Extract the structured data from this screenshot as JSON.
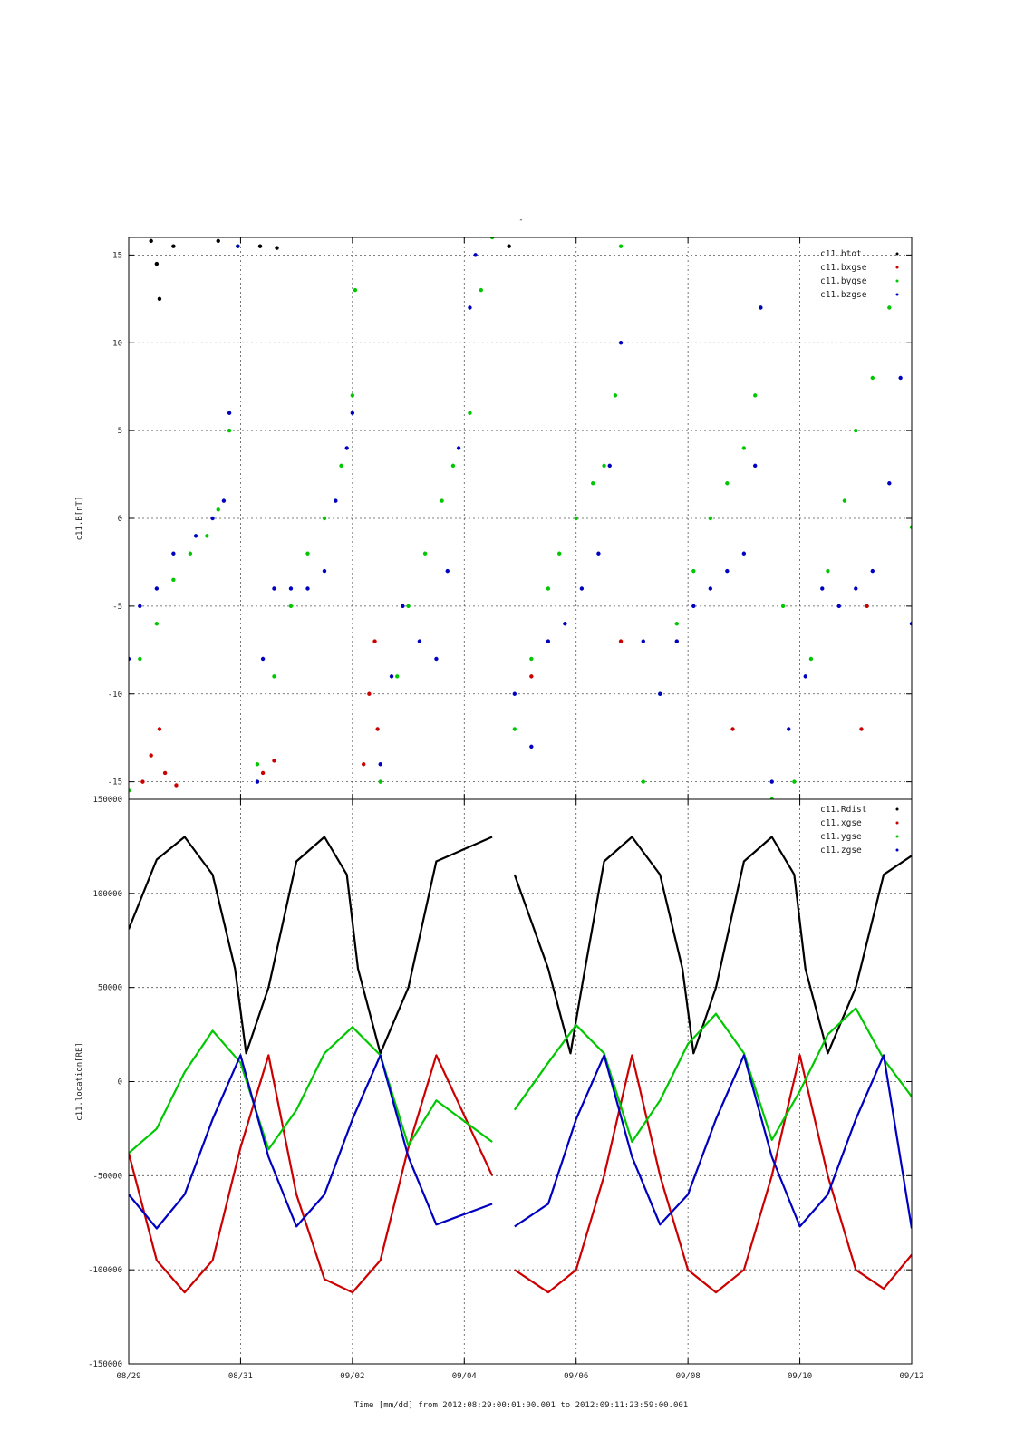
{
  "figure": {
    "top_title": "-",
    "time_label": "Time [mm/dd]  from 2012:08:29:00:01:00.001  to  2012:09:11:23:59:00.001"
  },
  "colors": {
    "black": "#000000",
    "red": "#cc0000",
    "green": "#00c800",
    "blue": "#0000c0"
  },
  "chart_data": [
    {
      "type": "scatter",
      "ylabel": "c11.B[nT]",
      "xlabel": "",
      "x_unit": "days since 08/29",
      "xlim": [
        0,
        14
      ],
      "ylim": [
        -16,
        16
      ],
      "yticks": [
        -15,
        -10,
        -5,
        0,
        5,
        10,
        15
      ],
      "xtick_labels": [
        "08/29",
        "08/31",
        "09/02",
        "09/04",
        "09/06",
        "09/08",
        "09/10",
        "09/12"
      ],
      "legend_position": "top-right",
      "grid": true,
      "series": [
        {
          "name": "c11.btot",
          "color": "black",
          "points": [
            [
              0.4,
              15.8
            ],
            [
              0.5,
              14.5
            ],
            [
              0.55,
              12.5
            ],
            [
              0.8,
              15.5
            ],
            [
              1.6,
              15.8
            ],
            [
              2.35,
              15.5
            ],
            [
              2.65,
              15.4
            ],
            [
              6.8,
              15.5
            ]
          ]
        },
        {
          "name": "c11.bxgse",
          "color": "red",
          "points": [
            [
              0.25,
              -15
            ],
            [
              0.4,
              -13.5
            ],
            [
              0.55,
              -12
            ],
            [
              0.65,
              -14.5
            ],
            [
              0.85,
              -15.2
            ],
            [
              2.4,
              -14.5
            ],
            [
              2.6,
              -13.8
            ],
            [
              4.3,
              -10
            ],
            [
              4.4,
              -7
            ],
            [
              4.45,
              -12
            ],
            [
              4.2,
              -14
            ],
            [
              7.2,
              -9
            ],
            [
              8.8,
              -7
            ],
            [
              10.8,
              -12
            ],
            [
              13.1,
              -12
            ],
            [
              13.2,
              -5
            ]
          ]
        },
        {
          "name": "c11.bygse",
          "color": "green",
          "points": [
            [
              0.0,
              -15.5
            ],
            [
              0.2,
              -8
            ],
            [
              0.5,
              -6
            ],
            [
              0.8,
              -3.5
            ],
            [
              1.1,
              -2
            ],
            [
              1.4,
              -1
            ],
            [
              1.6,
              0.5
            ],
            [
              1.8,
              5
            ],
            [
              1.95,
              15.5
            ],
            [
              2.3,
              -14
            ],
            [
              2.6,
              -9
            ],
            [
              2.9,
              -5
            ],
            [
              3.2,
              -2
            ],
            [
              3.5,
              0
            ],
            [
              3.8,
              3
            ],
            [
              4.0,
              7
            ],
            [
              4.05,
              13
            ],
            [
              4.5,
              -15
            ],
            [
              4.8,
              -9
            ],
            [
              5.0,
              -5
            ],
            [
              5.3,
              -2
            ],
            [
              5.6,
              1
            ],
            [
              5.8,
              3
            ],
            [
              6.1,
              6
            ],
            [
              6.3,
              13
            ],
            [
              6.5,
              16
            ],
            [
              6.9,
              -12
            ],
            [
              7.2,
              -8
            ],
            [
              7.5,
              -4
            ],
            [
              7.7,
              -2
            ],
            [
              8.0,
              0
            ],
            [
              8.3,
              2
            ],
            [
              8.5,
              3
            ],
            [
              8.7,
              7
            ],
            [
              8.8,
              15.5
            ],
            [
              9.2,
              -15
            ],
            [
              9.5,
              -10
            ],
            [
              9.8,
              -6
            ],
            [
              10.1,
              -3
            ],
            [
              10.4,
              0
            ],
            [
              10.7,
              2
            ],
            [
              11.0,
              4
            ],
            [
              11.2,
              7
            ],
            [
              11.3,
              12
            ],
            [
              11.5,
              -16
            ],
            [
              11.7,
              -5
            ],
            [
              11.9,
              -15
            ],
            [
              12.2,
              -8
            ],
            [
              12.5,
              -3
            ],
            [
              12.8,
              1
            ],
            [
              13.0,
              5
            ],
            [
              13.3,
              8
            ],
            [
              13.6,
              12
            ],
            [
              14.0,
              -0.5
            ]
          ]
        },
        {
          "name": "c11.bzgse",
          "color": "blue",
          "points": [
            [
              0.0,
              -8
            ],
            [
              0.2,
              -5
            ],
            [
              0.5,
              -4
            ],
            [
              0.8,
              -2
            ],
            [
              1.2,
              -1
            ],
            [
              1.5,
              0
            ],
            [
              1.7,
              1
            ],
            [
              1.8,
              6
            ],
            [
              1.95,
              15.5
            ],
            [
              2.3,
              -15
            ],
            [
              2.4,
              -8
            ],
            [
              2.6,
              -4
            ],
            [
              2.9,
              -4
            ],
            [
              3.2,
              -4
            ],
            [
              3.5,
              -3
            ],
            [
              3.7,
              1
            ],
            [
              3.9,
              4
            ],
            [
              4.0,
              6
            ],
            [
              4.5,
              -14
            ],
            [
              4.7,
              -9
            ],
            [
              4.9,
              -5
            ],
            [
              5.2,
              -7
            ],
            [
              5.5,
              -8
            ],
            [
              5.7,
              -3
            ],
            [
              5.9,
              4
            ],
            [
              6.1,
              12
            ],
            [
              6.2,
              15
            ],
            [
              6.9,
              -10
            ],
            [
              7.2,
              -13
            ],
            [
              7.5,
              -7
            ],
            [
              7.8,
              -6
            ],
            [
              8.1,
              -4
            ],
            [
              8.4,
              -2
            ],
            [
              8.6,
              3
            ],
            [
              8.8,
              10
            ],
            [
              9.2,
              -7
            ],
            [
              9.5,
              -10
            ],
            [
              9.8,
              -7
            ],
            [
              10.1,
              -5
            ],
            [
              10.4,
              -4
            ],
            [
              10.7,
              -3
            ],
            [
              11.0,
              -2
            ],
            [
              11.2,
              3
            ],
            [
              11.3,
              12
            ],
            [
              11.5,
              -15
            ],
            [
              11.8,
              -12
            ],
            [
              12.1,
              -9
            ],
            [
              12.4,
              -4
            ],
            [
              12.7,
              -5
            ],
            [
              13.0,
              -4
            ],
            [
              13.3,
              -3
            ],
            [
              13.6,
              2
            ],
            [
              13.8,
              8
            ],
            [
              14.0,
              -6
            ]
          ]
        }
      ]
    },
    {
      "type": "line",
      "ylabel": "c11.location[RE]",
      "xlabel": "Time [mm/dd]  from 2012:08:29:00:01:00.001  to  2012:09:11:23:59:00.001",
      "x_unit": "days since 08/29",
      "xlim": [
        0,
        14
      ],
      "ylim": [
        -150000,
        150000
      ],
      "yticks": [
        -150000,
        -100000,
        -50000,
        0,
        50000,
        100000,
        150000
      ],
      "xtick_labels": [
        "08/29",
        "08/31",
        "09/02",
        "09/04",
        "09/06",
        "09/08",
        "09/10",
        "09/12"
      ],
      "legend_position": "top-right",
      "grid": true,
      "data_gap": [
        6.5,
        6.9
      ],
      "series": [
        {
          "name": "c11.Rdist",
          "color": "black",
          "x": [
            0.0,
            0.5,
            1.0,
            1.5,
            1.9,
            2.1,
            2.5,
            3.0,
            3.5,
            3.9,
            4.1,
            4.5,
            5.0,
            5.5,
            6.5,
            6.9,
            7.5,
            7.9,
            8.1,
            8.5,
            9.0,
            9.5,
            9.9,
            10.1,
            10.5,
            11.0,
            11.5,
            11.9,
            12.1,
            12.5,
            13.0,
            13.5,
            14.0
          ],
          "y": [
            81000,
            118000,
            130000,
            110000,
            60000,
            15000,
            50000,
            117000,
            130000,
            110000,
            60000,
            15000,
            50000,
            117000,
            130000,
            110000,
            60000,
            15000,
            50000,
            117000,
            130000,
            110000,
            60000,
            15000,
            50000,
            117000,
            130000,
            110000,
            60000,
            15000,
            50000,
            110000,
            120000
          ]
        },
        {
          "name": "c11.xgse",
          "color": "red",
          "x": [
            0.0,
            0.5,
            1.0,
            1.5,
            2.0,
            2.5,
            3.0,
            3.5,
            4.0,
            4.5,
            5.0,
            5.5,
            6.5,
            6.9,
            7.5,
            8.0,
            8.5,
            9.0,
            9.5,
            10.0,
            10.5,
            11.0,
            11.5,
            12.0,
            12.5,
            13.0,
            13.5,
            14.0
          ],
          "y": [
            -38000,
            -95000,
            -112000,
            -95000,
            -35000,
            14000,
            -60000,
            -105000,
            -112000,
            -95000,
            -35000,
            14000,
            -50000,
            -100000,
            -112000,
            -100000,
            -50000,
            14000,
            -50000,
            -100000,
            -112000,
            -100000,
            -50000,
            14000,
            -50000,
            -100000,
            -110000,
            -92000
          ]
        },
        {
          "name": "c11.ygse",
          "color": "green",
          "x": [
            0.0,
            0.5,
            1.0,
            1.5,
            2.0,
            2.5,
            3.0,
            3.5,
            4.0,
            4.5,
            5.0,
            5.5,
            6.5,
            6.9,
            7.5,
            8.0,
            8.5,
            9.0,
            9.5,
            10.0,
            10.5,
            11.0,
            11.5,
            12.0,
            12.5,
            13.0,
            13.5,
            14.0
          ],
          "y": [
            -38000,
            -25000,
            5000,
            27000,
            10000,
            -36000,
            -15000,
            15000,
            29000,
            14000,
            -34000,
            -10000,
            -32000,
            -15000,
            10000,
            30000,
            15000,
            -32000,
            -10000,
            20000,
            36000,
            15000,
            -31000,
            -5000,
            25000,
            39000,
            12000,
            -8000
          ]
        },
        {
          "name": "c11.zgse",
          "color": "blue",
          "x": [
            0.0,
            0.5,
            1.0,
            1.5,
            2.0,
            2.5,
            3.0,
            3.5,
            4.0,
            4.5,
            5.0,
            5.5,
            6.5,
            6.9,
            7.5,
            8.0,
            8.5,
            9.0,
            9.5,
            10.0,
            10.5,
            11.0,
            11.5,
            12.0,
            12.5,
            13.0,
            13.5,
            14.0
          ],
          "y": [
            -60000,
            -78000,
            -60000,
            -20000,
            14000,
            -40000,
            -77000,
            -60000,
            -20000,
            14000,
            -40000,
            -76000,
            -65000,
            -77000,
            -65000,
            -20000,
            14000,
            -40000,
            -76000,
            -60000,
            -20000,
            14000,
            -40000,
            -77000,
            -60000,
            -20000,
            14000,
            -78000
          ]
        }
      ]
    }
  ]
}
